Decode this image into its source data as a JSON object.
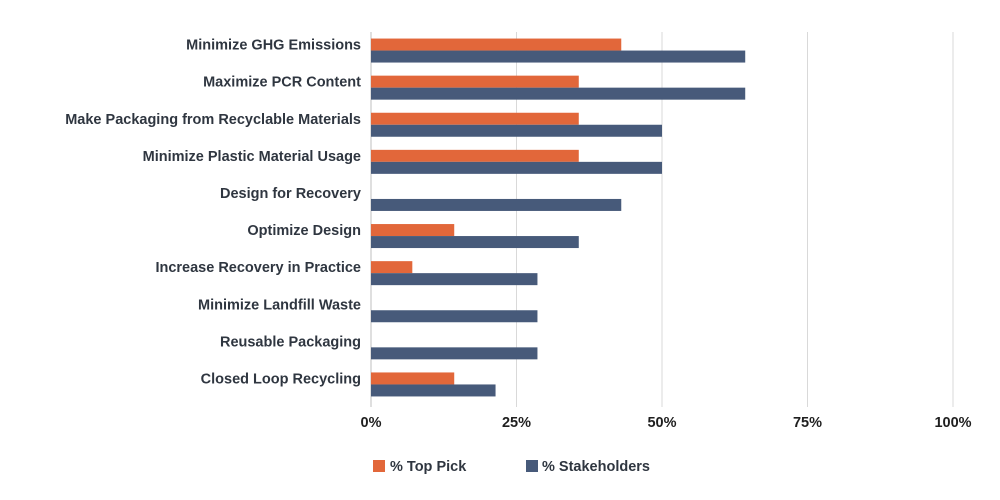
{
  "chart_data": {
    "type": "bar",
    "orientation": "horizontal",
    "categories": [
      "Minimize GHG Emissions",
      "Maximize PCR Content",
      "Make Packaging from Recyclable Materials",
      "Minimize Plastic Material Usage",
      "Design for Recovery",
      "Optimize Design",
      "Increase Recovery in Practice",
      "Minimize Landfill Waste",
      "Reusable Packaging",
      "Closed Loop Recycling"
    ],
    "series": [
      {
        "name": "% Top Pick",
        "color": "#e2673a",
        "values": [
          43,
          35.7,
          35.7,
          35.7,
          0,
          14.3,
          7.1,
          0,
          0,
          14.3
        ]
      },
      {
        "name": "% Stakeholders",
        "color": "#475a7a",
        "values": [
          64.3,
          64.3,
          50,
          50,
          43,
          35.7,
          28.6,
          28.6,
          28.6,
          21.4
        ]
      }
    ],
    "xlim": [
      0,
      100
    ],
    "xticks": [
      0,
      25,
      50,
      75,
      100
    ],
    "xtick_labels": [
      "0%",
      "25%",
      "50%",
      "75%",
      "100%"
    ],
    "grid": "vertical",
    "legend_position": "bottom-center",
    "title": "",
    "xlabel": "",
    "ylabel": ""
  }
}
